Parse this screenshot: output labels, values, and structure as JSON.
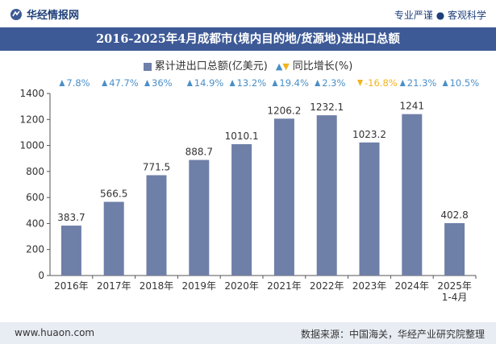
{
  "header": {
    "brand": "华经情报网",
    "tagline": "专业严谨 ● 客观科学"
  },
  "legend": {
    "bar_label": "累计进出口总额(亿美元)",
    "line_label": "同比增长(%)"
  },
  "footer": {
    "url": "www.huaon.com",
    "source": "数据来源：中国海关，华经产业研究院整理"
  },
  "colors": {
    "bar": "#6e7fa8",
    "title_band": "#3d5a96",
    "growth_up": "#4a8fc8",
    "growth_down": "#f2b31d"
  },
  "chart_data": {
    "type": "bar",
    "title": "2016-2025年4月成都市(境内目的地/货源地)进出口总额",
    "categories": [
      "2016年",
      "2017年",
      "2018年",
      "2019年",
      "2020年",
      "2021年",
      "2022年",
      "2023年",
      "2024年",
      "2025年\n1-4月"
    ],
    "series": [
      {
        "name": "累计进出口总额(亿美元)",
        "values": [
          383.7,
          566.5,
          771.5,
          888.7,
          1010.1,
          1206.2,
          1232.1,
          1023.2,
          1241,
          402.8
        ]
      }
    ],
    "value_labels": [
      "383.7",
      "566.5",
      "771.5",
      "888.7",
      "1010.1",
      "1206.2",
      "1232.1",
      "1023.2",
      "1241",
      "402.8"
    ],
    "growth": {
      "name": "同比增长(%)",
      "values": [
        7.8,
        47.7,
        36,
        14.9,
        13.2,
        19.4,
        2.3,
        -16.8,
        21.3,
        10.5
      ],
      "labels": [
        "7.8%",
        "47.7%",
        "36%",
        "14.9%",
        "13.2%",
        "19.4%",
        "2.3%",
        "-16.8%",
        "21.3%",
        "10.5%"
      ]
    },
    "yticks": [
      "0",
      "200",
      "400",
      "600",
      "800",
      "1000",
      "1200",
      "1400"
    ],
    "ylim": [
      0,
      1400
    ],
    "grid": false,
    "legend_position": "top-center"
  }
}
